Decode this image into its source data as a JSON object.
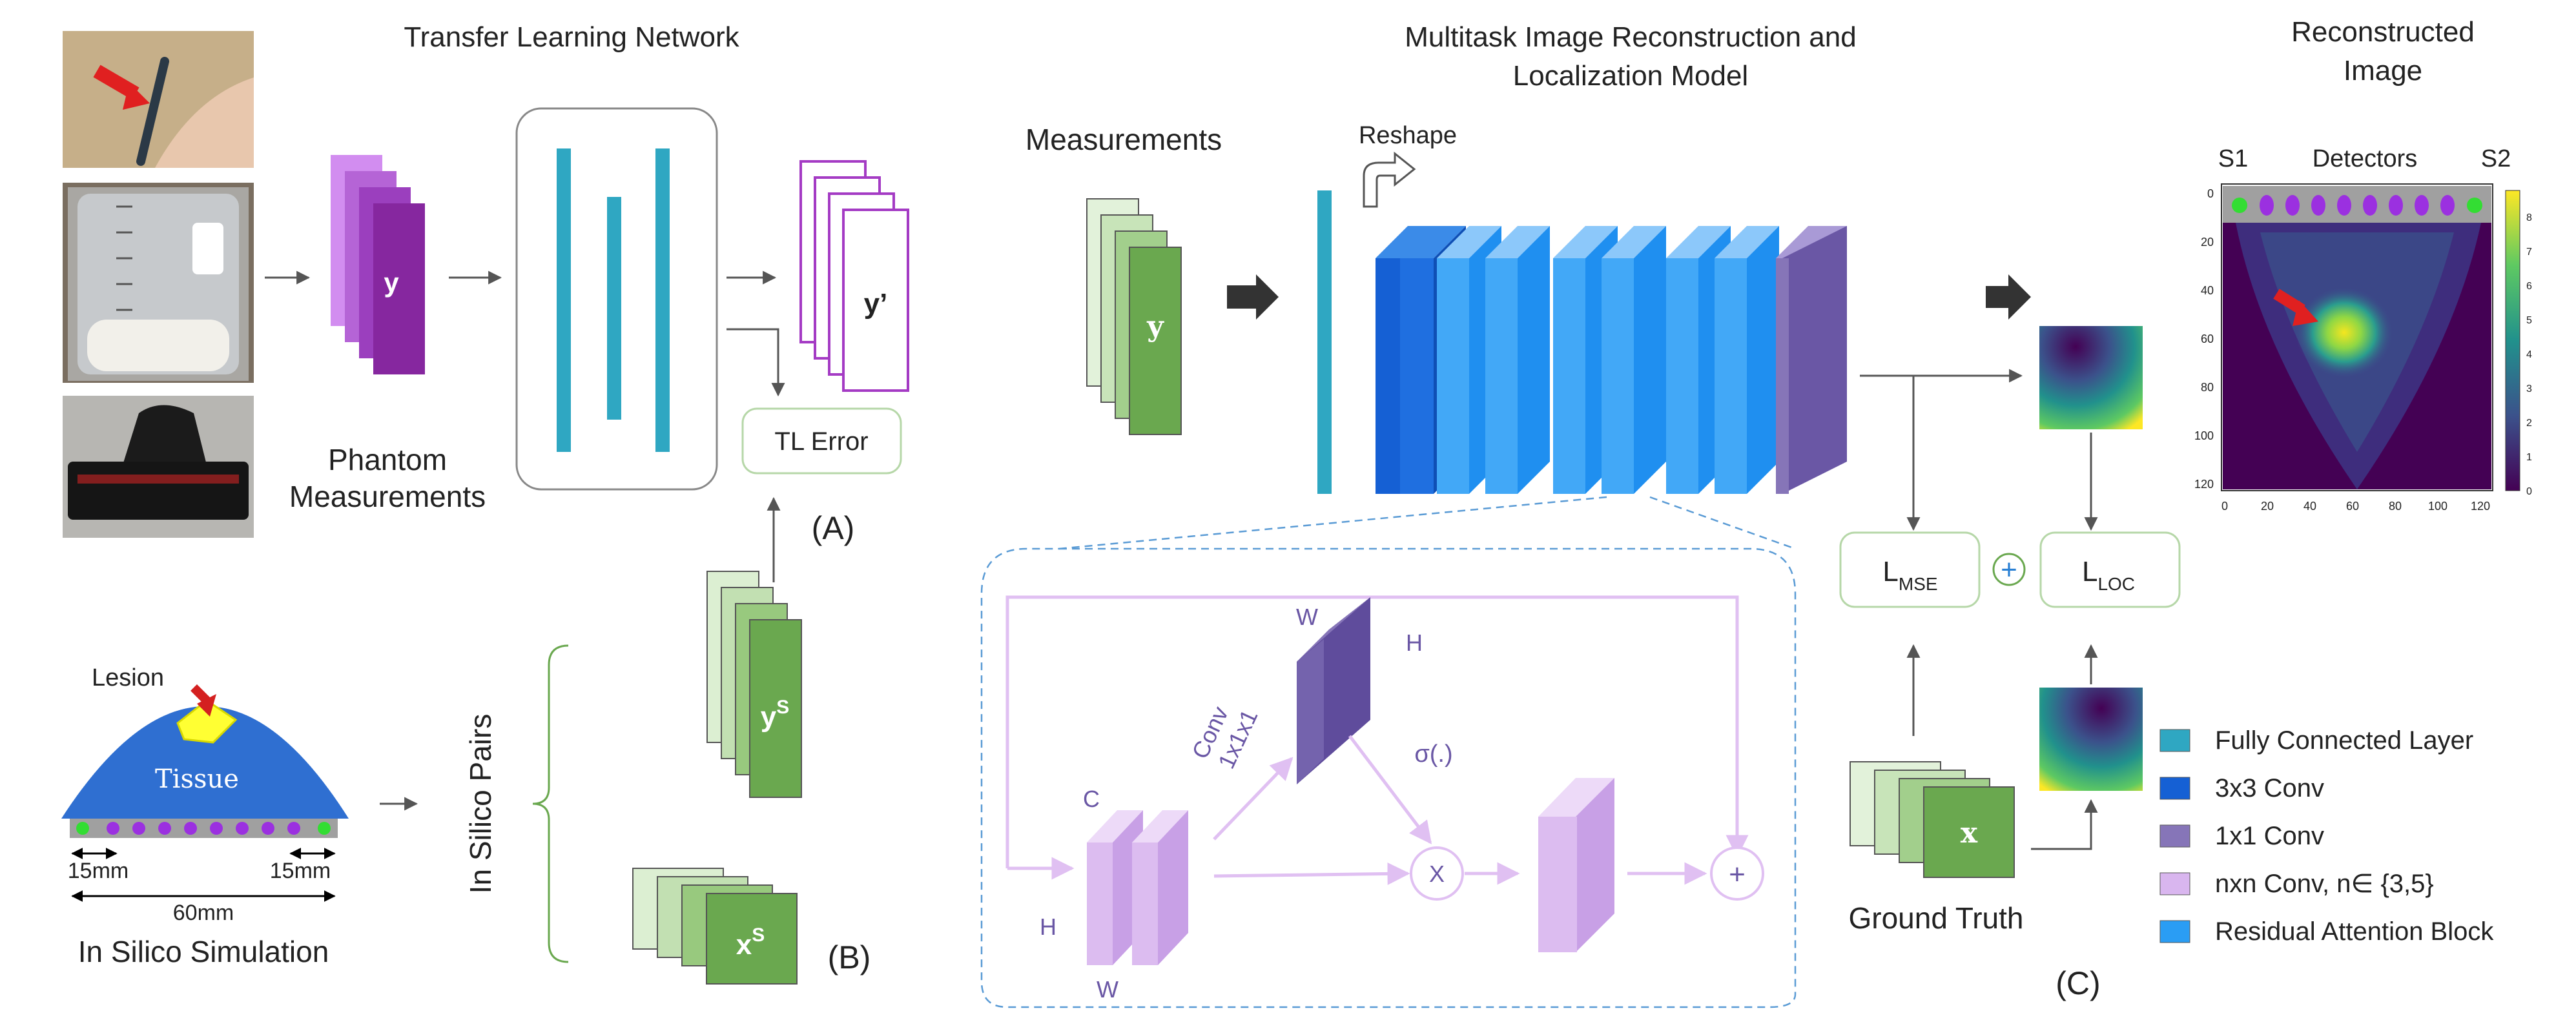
{
  "panel_a": {
    "title": "Transfer Learning Network",
    "phantom_label_1": "Phantom",
    "phantom_label_2": "Measurements",
    "y_label": "y",
    "y_prime_label": "y’",
    "tl_error": "TL Error",
    "tag": "(A)"
  },
  "panel_b": {
    "lesion": "Lesion",
    "tissue": "Tissue",
    "dim_left": "15mm",
    "dim_right": "15mm",
    "dim_total": "60mm",
    "simulation_label": "In Silico Simulation",
    "pairs_label": "In Silico Pairs",
    "ys_base": "y",
    "ys_sup": "S",
    "xs_base": "x",
    "xs_sup": "S",
    "tag": "(B)"
  },
  "panel_c": {
    "title_line1": "Multitask Image Reconstruction and",
    "title_line2": "Localization Model",
    "measurements": "Measurements",
    "y_label": "y",
    "reshape": "Reshape",
    "loss_mse_base": "L",
    "loss_mse_sub": "MSE",
    "loss_loc_base": "L",
    "loss_loc_sub": "LOC",
    "plus": "+",
    "ground_truth": "Ground Truth",
    "x_label": "x",
    "tag": "(C)",
    "block": {
      "c": "C",
      "h_left": "H",
      "w_bottom": "W",
      "conv_line1": "Conv",
      "conv_line2": "1x1x1",
      "w_top": "W",
      "h_top": "H",
      "sigma": "σ(.)",
      "multiply": "X",
      "add": "+"
    }
  },
  "recon": {
    "title_line1": "Reconstructed",
    "title_line2": "Image",
    "s1": "S1",
    "detectors": "Detectors",
    "s2": "S2",
    "y_ticks": [
      "0",
      "20",
      "40",
      "60",
      "80",
      "100",
      "120"
    ],
    "x_ticks": [
      "0",
      "20",
      "40",
      "60",
      "80",
      "100",
      "120"
    ],
    "colorbar_ticks": [
      "0",
      "1",
      "2",
      "3",
      "4",
      "5",
      "6",
      "7",
      "8"
    ]
  },
  "legend": [
    {
      "label": "Fully Connected Layer",
      "color": "#2fa7c2"
    },
    {
      "label": "3x3 Conv",
      "color": "#1560d4"
    },
    {
      "label": "1x1 Conv",
      "color": "#8675b8"
    },
    {
      "label": "nxn Conv, n∈ {3,5}",
      "color": "#d9b6ef"
    },
    {
      "label": "Residual Attention Block",
      "color": "#2a9df4"
    }
  ],
  "colors": {
    "fc_teal": "#2fa7c2",
    "conv3_blue": "#1560d4",
    "res_blue": "#2a9df4",
    "conv1_purple": "#8675b8",
    "nconv_lilac": "#d9b6ef",
    "magenta": "#a43bc4",
    "green_dark": "#6aa84f",
    "green_light": "#dcefd2",
    "box_green": "#b6d7a8",
    "dashed_blue": "#5a9bd5"
  }
}
